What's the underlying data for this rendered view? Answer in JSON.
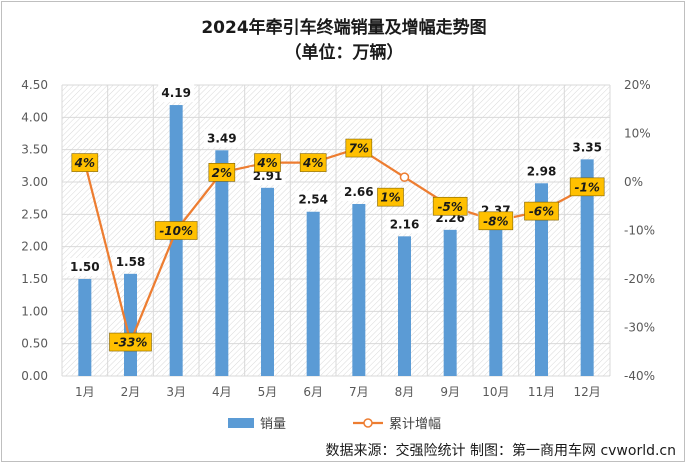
{
  "chart_data": {
    "type": "bar+line",
    "title": "2024年牵引车终端销量及增幅走势图",
    "subtitle": "（单位：万辆）",
    "categories": [
      "1月",
      "2月",
      "3月",
      "4月",
      "5月",
      "6月",
      "7月",
      "8月",
      "9月",
      "10月",
      "11月",
      "12月"
    ],
    "series": [
      {
        "name": "销量",
        "type": "bar",
        "axis": "left",
        "color": "#5b9bd5",
        "values": [
          1.5,
          1.58,
          4.19,
          3.49,
          2.91,
          2.54,
          2.66,
          2.16,
          2.26,
          2.37,
          2.98,
          3.35
        ],
        "labels": [
          "1.50",
          "1.58",
          "4.19",
          "3.49",
          "2.91",
          "2.54",
          "2.66",
          "2.16",
          "2.26",
          "2.37",
          "2.98",
          "3.35"
        ]
      },
      {
        "name": "累计增幅",
        "type": "line",
        "axis": "right",
        "color": "#ed7d31",
        "values": [
          4,
          -33,
          -10,
          2,
          4,
          4,
          7,
          1,
          -5,
          -8,
          -6,
          -1
        ],
        "labels": [
          "4%",
          "-33%",
          "-10%",
          "2%",
          "4%",
          "4%",
          "7%",
          "1%",
          "-5%",
          "-8%",
          "-6%",
          "-1%"
        ],
        "label_bg": "#ffc000"
      }
    ],
    "y_left": {
      "min": 0,
      "max": 4.5,
      "step": 0.5,
      "tick_labels": [
        "0.00",
        "0.50",
        "1.00",
        "1.50",
        "2.00",
        "2.50",
        "3.00",
        "3.50",
        "4.00",
        "4.50"
      ]
    },
    "y_right": {
      "min": -40,
      "max": 20,
      "step": 10,
      "tick_labels": [
        "-40%",
        "-30%",
        "-20%",
        "-10%",
        "0%",
        "10%",
        "20%"
      ]
    },
    "grid": true,
    "legend_position": "bottom"
  },
  "source_text": "数据来源：交强险统计    制图：第一商用车网 cvworld.cn"
}
